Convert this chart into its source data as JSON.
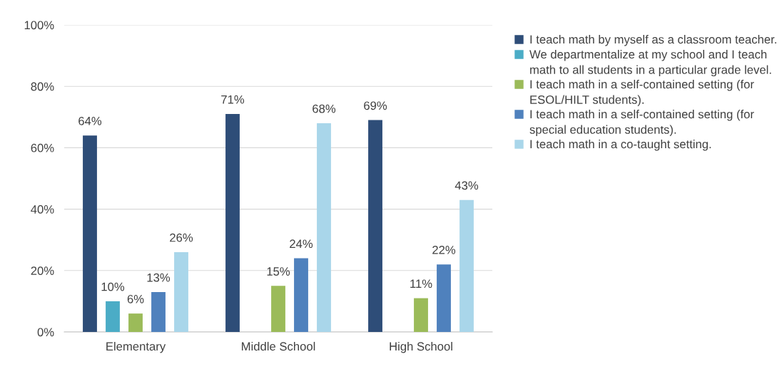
{
  "chart_data": {
    "type": "bar",
    "categories": [
      "Elementary",
      "Middle School",
      "High School"
    ],
    "series": [
      {
        "name": "I teach math by myself as a classroom teacher.",
        "color": "#2e4d78",
        "values": [
          64,
          71,
          69
        ],
        "value_labels": [
          "64%",
          "71%",
          "69%"
        ]
      },
      {
        "name": "We departmentalize at my school and I teach math to all students in a particular grade level.",
        "color": "#4bacc6",
        "values": [
          10,
          null,
          null
        ],
        "value_labels": [
          "10%",
          null,
          null
        ]
      },
      {
        "name": "I teach math in a self-contained setting (for ESOL/HILT students).",
        "color": "#9bbb59",
        "values": [
          6,
          15,
          11
        ],
        "value_labels": [
          "6%",
          "15%",
          "11%"
        ]
      },
      {
        "name": "I teach math in a self-contained setting (for special education students).",
        "color": "#4f81bd",
        "values": [
          13,
          24,
          22
        ],
        "value_labels": [
          "13%",
          "24%",
          "22%"
        ]
      },
      {
        "name": "I teach math in a co-taught setting.",
        "color": "#a9d6ea",
        "values": [
          26,
          68,
          43
        ],
        "value_labels": [
          "26%",
          "68%",
          "43%"
        ]
      }
    ],
    "ylim": [
      0,
      100
    ],
    "yticks": [
      {
        "value": 0,
        "label": "0%"
      },
      {
        "value": 20,
        "label": "20%"
      },
      {
        "value": 40,
        "label": "40%"
      },
      {
        "value": 60,
        "label": "60%"
      },
      {
        "value": 80,
        "label": "80%"
      },
      {
        "value": 100,
        "label": "100%"
      }
    ],
    "grid": "y",
    "legend": "right"
  }
}
